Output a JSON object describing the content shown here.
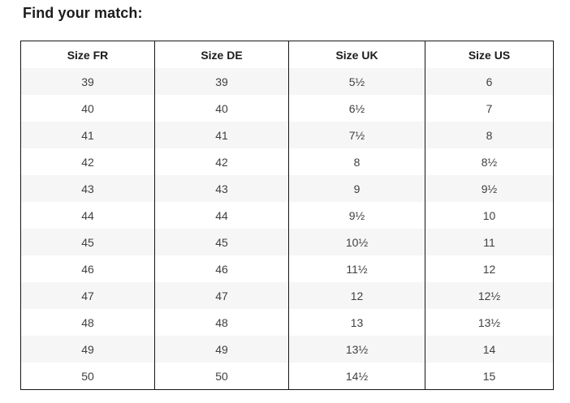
{
  "page": {
    "title": "Find your match:"
  },
  "table": {
    "headers": [
      "Size FR",
      "Size DE",
      "Size UK",
      "Size US"
    ],
    "rows": [
      [
        "39",
        "39",
        "5½",
        "6"
      ],
      [
        "40",
        "40",
        "6½",
        "7"
      ],
      [
        "41",
        "41",
        "7½",
        "8"
      ],
      [
        "42",
        "42",
        "8",
        "8½"
      ],
      [
        "43",
        "43",
        "9",
        "9½"
      ],
      [
        "44",
        "44",
        "9½",
        "10"
      ],
      [
        "45",
        "45",
        "10½",
        "11"
      ],
      [
        "46",
        "46",
        "11½",
        "12"
      ],
      [
        "47",
        "47",
        "12",
        "12½"
      ],
      [
        "48",
        "48",
        "13",
        "13½"
      ],
      [
        "49",
        "49",
        "13½",
        "14"
      ],
      [
        "50",
        "50",
        "14½",
        "15"
      ]
    ],
    "colors": {
      "stripe_background": "#f6f6f6",
      "row_background": "#ffffff",
      "border": "#161616",
      "header_text": "#1c1c1c",
      "cell_text": "#3f3f3f"
    }
  }
}
